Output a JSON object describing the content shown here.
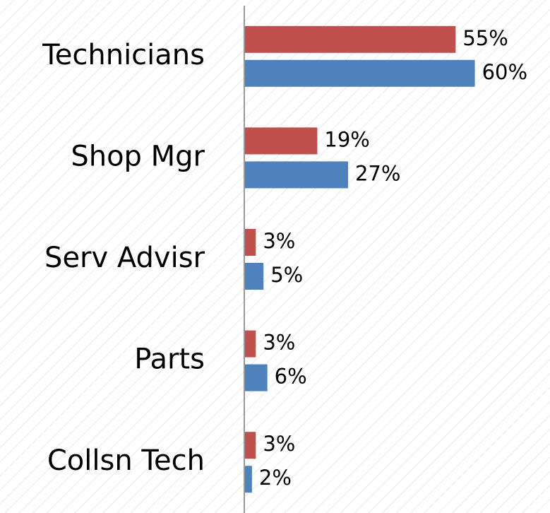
{
  "chart_data": {
    "type": "bar",
    "orientation": "horizontal",
    "categories": [
      "Technicians",
      "Shop Mgr",
      "Serv Advisr",
      "Parts",
      "Collsn Tech"
    ],
    "series": [
      {
        "color": "#c0504d",
        "values": [
          55,
          19,
          3,
          3,
          3
        ],
        "value_labels": [
          "55%",
          "19%",
          "3%",
          "3%",
          "3%"
        ]
      },
      {
        "color": "#4f81bd",
        "values": [
          60,
          27,
          5,
          6,
          2
        ],
        "value_labels": [
          "60%",
          "27%",
          "5%",
          "6%",
          "2%"
        ]
      }
    ],
    "xlim": [
      0,
      70
    ]
  }
}
